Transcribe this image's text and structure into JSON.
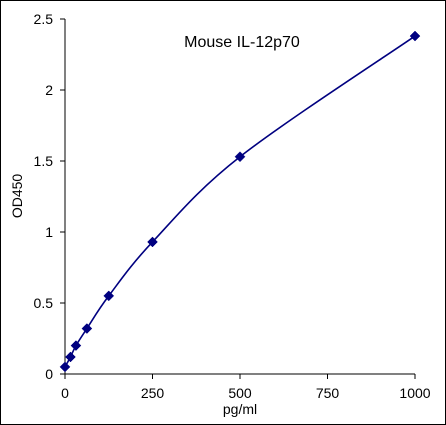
{
  "chart_data": {
    "type": "scatter",
    "title": "Mouse IL-12p70",
    "xlabel": "pg/ml",
    "ylabel": "OD450",
    "xlim": [
      0,
      1000
    ],
    "ylim": [
      0,
      2.5
    ],
    "x_ticks": [
      0,
      250,
      500,
      750,
      1000
    ],
    "y_ticks": [
      0,
      0.5,
      1,
      1.5,
      2,
      2.5
    ],
    "x_tick_labels": [
      "0",
      "250",
      "500",
      "750",
      "1000"
    ],
    "y_tick_labels": [
      "0",
      "0.5",
      "1",
      "1.5",
      "2",
      "2.5"
    ],
    "grid": false,
    "legend": "none",
    "series": [
      {
        "marker": "diamond",
        "fit": "smooth",
        "color": "#000080",
        "x": [
          0,
          15.6,
          31.25,
          62.5,
          125,
          250,
          500,
          1000
        ],
        "y": [
          0.05,
          0.12,
          0.2,
          0.32,
          0.55,
          0.93,
          1.53,
          2.38
        ]
      }
    ]
  }
}
